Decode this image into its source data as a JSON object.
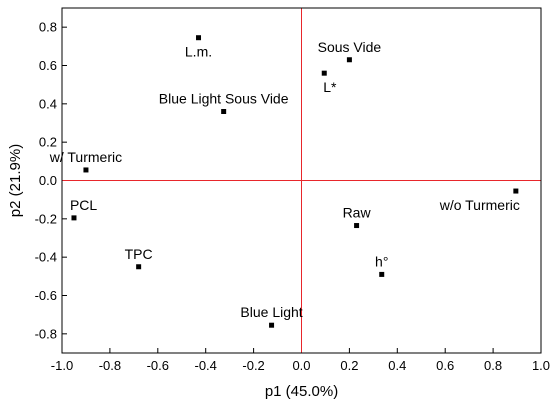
{
  "chart_data": {
    "type": "scatter",
    "title": "",
    "xlabel": "p1 (45.0%)",
    "ylabel": "p2 (21.9%)",
    "xlim": [
      -1.0,
      1.0
    ],
    "ylim": [
      -0.9,
      0.9
    ],
    "xticks": [
      -1.0,
      -0.8,
      -0.6,
      -0.4,
      -0.2,
      0.0,
      0.2,
      0.4,
      0.6,
      0.8,
      1.0
    ],
    "xtick_labels": [
      "-1.0",
      "-0.8",
      "-0.6",
      "-0.4",
      "-0.2",
      "0.0",
      "0.2",
      "0.4",
      "0.6",
      "0.8",
      "1.0"
    ],
    "yticks": [
      0.8,
      0.6,
      0.4,
      0.2,
      0.0,
      -0.2,
      -0.4,
      -0.6,
      -0.8
    ],
    "ytick_labels": [
      "0.8",
      "0.6",
      "0.4",
      "0.2",
      "0.0",
      "-0.2",
      "-0.4",
      "-0.6",
      "-0.8"
    ],
    "reference_lines": {
      "x": 0.0,
      "y": 0.0,
      "color": "#e8262b"
    },
    "marker_color": "#000000",
    "grid": false,
    "points": [
      {
        "label": "L.m.",
        "x": -0.43,
        "y": 0.745,
        "label_pos": "below"
      },
      {
        "label": "Sous Vide",
        "x": 0.2,
        "y": 0.63,
        "label_pos": "above"
      },
      {
        "label": "L*",
        "x": 0.095,
        "y": 0.56,
        "label_pos": "below-right"
      },
      {
        "label": "Blue Light Sous Vide",
        "x": -0.325,
        "y": 0.36,
        "label_pos": "above"
      },
      {
        "label": "w/ Turmeric",
        "x": -0.9,
        "y": 0.055,
        "label_pos": "above"
      },
      {
        "label": "w/o Turmeric",
        "x": 0.895,
        "y": -0.055,
        "label_pos": "below-left"
      },
      {
        "label": "PCL",
        "x": -0.95,
        "y": -0.195,
        "label_pos": "above-right"
      },
      {
        "label": "Raw",
        "x": 0.23,
        "y": -0.235,
        "label_pos": "above"
      },
      {
        "label": "TPC",
        "x": -0.68,
        "y": -0.45,
        "label_pos": "above"
      },
      {
        "label": "h°",
        "x": 0.335,
        "y": -0.49,
        "label_pos": "above"
      },
      {
        "label": "Blue Light",
        "x": -0.125,
        "y": -0.755,
        "label_pos": "above"
      }
    ]
  }
}
